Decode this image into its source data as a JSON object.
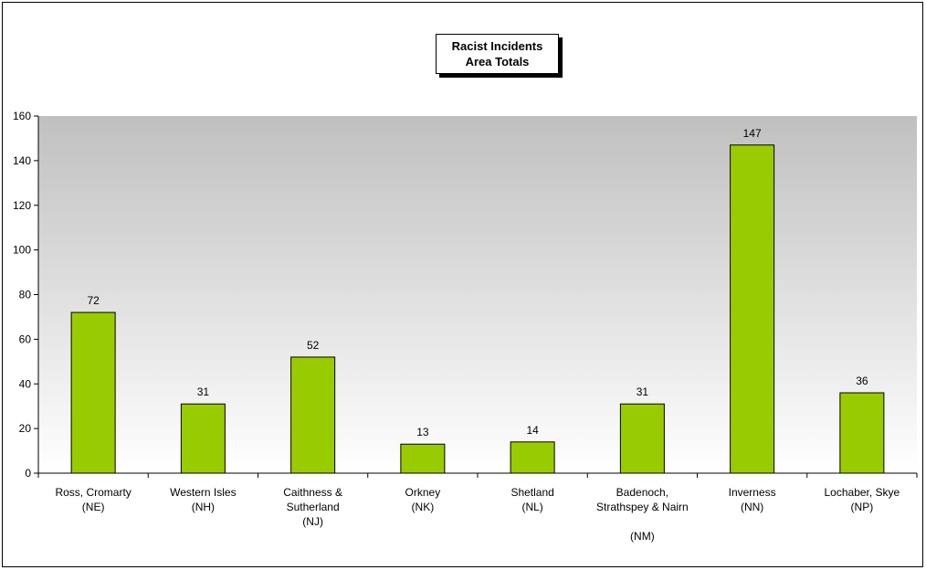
{
  "chart_data": {
    "type": "bar",
    "title_lines": [
      "Racist Incidents",
      "Area Totals"
    ],
    "categories": [
      [
        "Ross, Cromarty",
        "(NE)"
      ],
      [
        "Western Isles",
        "(NH)"
      ],
      [
        "Caithness &",
        "Sutherland",
        "(NJ)"
      ],
      [
        "Orkney",
        "(NK)"
      ],
      [
        "Shetland",
        "(NL)"
      ],
      [
        "Badenoch,",
        "Strathspey & Nairn",
        "",
        "(NM)"
      ],
      [
        "Inverness",
        "(NN)"
      ],
      [
        "Lochaber, Skye",
        "(NP)"
      ]
    ],
    "values": [
      72,
      31,
      52,
      13,
      14,
      31,
      147,
      36
    ],
    "ylim": [
      0,
      160
    ],
    "yticks": [
      0,
      20,
      40,
      60,
      80,
      100,
      120,
      140,
      160
    ],
    "data_labels": true,
    "grid": false,
    "legend": "none",
    "colors": {
      "bar_fill": "#99CC00",
      "bar_stroke": "#000000",
      "plot_top": "#C0C0C0",
      "plot_bottom": "#FFFFFF"
    }
  }
}
